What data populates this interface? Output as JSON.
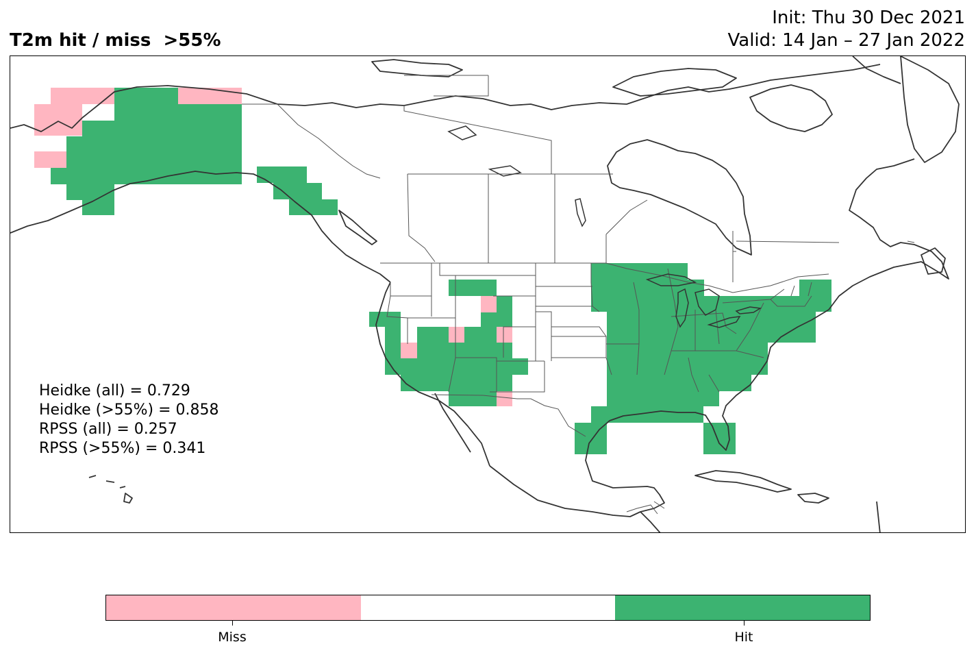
{
  "title": {
    "left": "T2m hit / miss  >55%",
    "init": "Init: Thu 30 Dec 2021",
    "valid": "Valid: 14 Jan – 27 Jan 2022"
  },
  "stats": [
    "Heidke (all) = 0.729",
    "Heidke (>55%) = 0.858",
    "RPSS (all) = 0.257",
    "RPSS (>55%) = 0.341"
  ],
  "legend": {
    "miss_label": "Miss",
    "hit_label": "Hit",
    "colors": {
      "miss": "#ffb6c1",
      "neutral": "#ffffff",
      "hit": "#3cb371"
    }
  },
  "map_style": {
    "coast": "#333333",
    "border": "#555555"
  }
}
